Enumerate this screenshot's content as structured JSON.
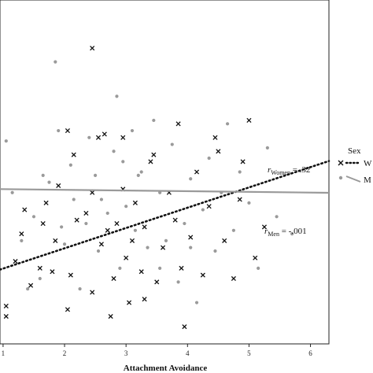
{
  "chart_data": {
    "type": "scatter",
    "xlabel": "Attachment Avoidance",
    "ylabel": "",
    "title": "",
    "xlim": [
      0.95,
      6.3
    ],
    "ylim": [
      0,
      10
    ],
    "x_ticks": [
      "1",
      "2",
      "3",
      "4",
      "5",
      "6"
    ],
    "grid": false,
    "legend": {
      "title": "Sex",
      "placement": "right",
      "entries": [
        "W",
        "M"
      ]
    },
    "annotations": {
      "women": {
        "r": "r",
        "sub": "Women",
        "value": " = .32"
      },
      "men": {
        "r": "r",
        "sub": "Men",
        "value": " = -.001"
      }
    },
    "colors": {
      "women": "#111111",
      "men": "#9a9a9a"
    },
    "series": [
      {
        "name": "W",
        "marker": "x",
        "fit": {
          "slope": 0.59,
          "intercept": 1.6,
          "style": "dotted"
        },
        "points": [
          [
            1.05,
            0.8
          ],
          [
            1.05,
            1.1
          ],
          [
            1.2,
            2.4
          ],
          [
            1.3,
            3.2
          ],
          [
            1.35,
            3.9
          ],
          [
            1.45,
            1.7
          ],
          [
            1.6,
            2.2
          ],
          [
            1.65,
            3.5
          ],
          [
            1.7,
            4.1
          ],
          [
            1.8,
            2.1
          ],
          [
            1.85,
            3.0
          ],
          [
            1.9,
            4.6
          ],
          [
            2.05,
            1.0
          ],
          [
            2.1,
            2.0
          ],
          [
            2.2,
            3.6
          ],
          [
            2.35,
            3.8
          ],
          [
            2.45,
            4.4
          ],
          [
            2.45,
            8.6
          ],
          [
            2.55,
            6.0
          ],
          [
            2.6,
            2.9
          ],
          [
            2.7,
            3.3
          ],
          [
            2.75,
            0.8
          ],
          [
            2.8,
            1.9
          ],
          [
            2.95,
            4.5
          ],
          [
            3.0,
            2.5
          ],
          [
            3.05,
            1.2
          ],
          [
            3.1,
            3.0
          ],
          [
            3.15,
            4.1
          ],
          [
            3.25,
            2.1
          ],
          [
            3.3,
            3.4
          ],
          [
            3.4,
            5.3
          ],
          [
            3.5,
            1.8
          ],
          [
            3.6,
            2.8
          ],
          [
            3.7,
            4.4
          ],
          [
            3.8,
            3.6
          ],
          [
            3.9,
            2.2
          ],
          [
            3.95,
            0.5
          ],
          [
            4.05,
            3.1
          ],
          [
            4.15,
            5.0
          ],
          [
            4.25,
            2.0
          ],
          [
            4.35,
            4.0
          ],
          [
            4.45,
            6.0
          ],
          [
            4.5,
            5.6
          ],
          [
            4.6,
            3.0
          ],
          [
            4.75,
            1.9
          ],
          [
            4.85,
            4.2
          ],
          [
            4.9,
            5.3
          ],
          [
            5.0,
            6.5
          ],
          [
            5.1,
            2.5
          ],
          [
            5.25,
            3.4
          ],
          [
            2.15,
            5.5
          ],
          [
            2.45,
            1.5
          ],
          [
            2.65,
            6.1
          ],
          [
            2.95,
            6.0
          ],
          [
            3.45,
            5.5
          ],
          [
            3.85,
            6.4
          ],
          [
            3.3,
            1.3
          ],
          [
            2.85,
            3.5
          ],
          [
            2.05,
            6.2
          ]
        ]
      },
      {
        "name": "M",
        "marker": "dot",
        "fit": {
          "slope": -0.02,
          "intercept": 4.52,
          "style": "solid"
        },
        "points": [
          [
            1.05,
            5.9
          ],
          [
            1.15,
            4.4
          ],
          [
            1.3,
            3.0
          ],
          [
            1.4,
            1.6
          ],
          [
            1.5,
            3.7
          ],
          [
            1.6,
            1.9
          ],
          [
            1.75,
            4.7
          ],
          [
            1.85,
            8.2
          ],
          [
            1.9,
            6.2
          ],
          [
            1.95,
            3.4
          ],
          [
            2.0,
            2.9
          ],
          [
            2.1,
            5.2
          ],
          [
            2.15,
            4.2
          ],
          [
            2.25,
            1.6
          ],
          [
            2.4,
            6.0
          ],
          [
            2.5,
            4.9
          ],
          [
            2.55,
            2.7
          ],
          [
            2.6,
            4.2
          ],
          [
            2.7,
            3.8
          ],
          [
            2.8,
            5.6
          ],
          [
            2.85,
            7.2
          ],
          [
            2.9,
            2.2
          ],
          [
            3.0,
            4.0
          ],
          [
            3.1,
            6.2
          ],
          [
            3.15,
            3.3
          ],
          [
            3.25,
            5.0
          ],
          [
            3.35,
            2.8
          ],
          [
            3.45,
            6.5
          ],
          [
            3.55,
            4.4
          ],
          [
            3.65,
            3.0
          ],
          [
            3.75,
            5.8
          ],
          [
            3.85,
            1.8
          ],
          [
            3.95,
            3.5
          ],
          [
            4.05,
            4.8
          ],
          [
            4.15,
            1.2
          ],
          [
            4.25,
            3.9
          ],
          [
            4.35,
            5.4
          ],
          [
            4.45,
            2.7
          ],
          [
            4.55,
            4.4
          ],
          [
            4.65,
            6.4
          ],
          [
            4.75,
            3.3
          ],
          [
            4.85,
            5.0
          ],
          [
            5.0,
            4.1
          ],
          [
            5.15,
            2.2
          ],
          [
            5.3,
            5.7
          ],
          [
            5.45,
            3.7
          ],
          [
            5.7,
            3.2
          ],
          [
            3.2,
            4.9
          ],
          [
            2.35,
            3.5
          ],
          [
            3.55,
            2.2
          ],
          [
            1.65,
            4.9
          ],
          [
            2.95,
            5.3
          ],
          [
            4.05,
            2.8
          ]
        ]
      }
    ]
  }
}
